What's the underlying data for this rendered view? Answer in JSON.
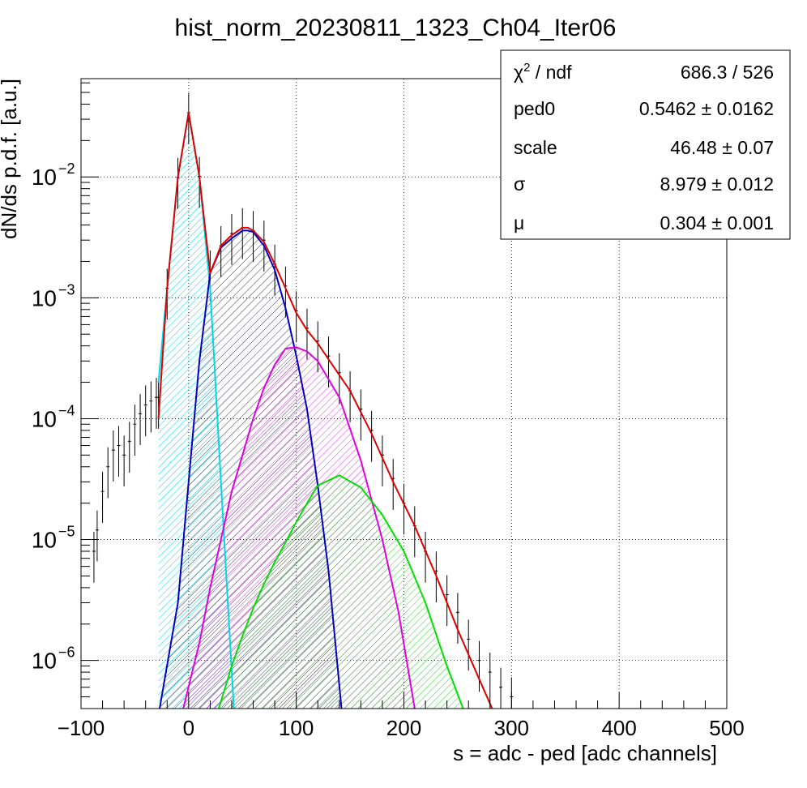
{
  "chart_data": {
    "type": "line",
    "title": "hist_norm_20230811_1323_Ch04_Iter06",
    "xlabel": "s = adc - ped [adc channels]",
    "ylabel": "dN/ds p.d.f. [a.u.]",
    "xlim": [
      -100,
      500
    ],
    "ylim": [
      4e-07,
      0.065
    ],
    "yscale": "log",
    "grid": true,
    "x_ticks": [
      {
        "value": -100,
        "label": "−100"
      },
      {
        "value": 0,
        "label": "0"
      },
      {
        "value": 100,
        "label": "100"
      },
      {
        "value": 200,
        "label": "200"
      },
      {
        "value": 300,
        "label": "300"
      },
      {
        "value": 400,
        "label": "400"
      },
      {
        "value": 500,
        "label": "500"
      }
    ],
    "y_ticks": [
      {
        "value": 0.01,
        "base": "10",
        "exp": "−2"
      },
      {
        "value": 0.001,
        "base": "10",
        "exp": "−3"
      },
      {
        "value": 0.0001,
        "base": "10",
        "exp": "−4"
      },
      {
        "value": 1e-05,
        "base": "10",
        "exp": "−5"
      },
      {
        "value": 1e-06,
        "base": "10",
        "exp": "−6"
      }
    ],
    "legend_position": "top-right",
    "stats": [
      {
        "label": "χ",
        "sup": "2",
        "label_rest": " / ndf",
        "value": "686.3 / 526"
      },
      {
        "label": "ped0",
        "sup": "",
        "label_rest": "",
        "value": "0.5462 ± 0.0162"
      },
      {
        "label": "scale",
        "sup": "",
        "label_rest": "",
        "value": "46.48 ± 0.07"
      },
      {
        "label": "σ",
        "sup": "",
        "label_rest": "",
        "value": "8.979 ± 0.012"
      },
      {
        "label": "μ",
        "sup": "",
        "label_rest": "",
        "value": "0.304 ± 0.001"
      }
    ],
    "components": [
      {
        "color": "#00d8e8",
        "hatch": "hatch-cyan",
        "x": [
          -28,
          -20,
          -10,
          0,
          10,
          20,
          30,
          42
        ],
        "y": [
          0.0002,
          0.0012,
          0.01,
          0.034,
          0.01,
          0.0012,
          3e-05,
          4e-07
        ]
      },
      {
        "color": "#0000c0",
        "hatch": "hatch-blue",
        "x": [
          -27,
          -10,
          0,
          10,
          20,
          30,
          40,
          50,
          55,
          60,
          70,
          80,
          90,
          100,
          110,
          120,
          130,
          142
        ],
        "y": [
          4e-07,
          3e-06,
          3e-05,
          0.0003,
          0.0016,
          0.0026,
          0.0031,
          0.0036,
          0.0036,
          0.0035,
          0.0027,
          0.0017,
          0.00082,
          0.00033,
          0.00012,
          2.8e-05,
          5.5e-06,
          4e-07
        ]
      },
      {
        "color": "#e000e0",
        "hatch": "hatch-magenta",
        "x": [
          -5,
          10,
          20,
          30,
          40,
          50,
          60,
          70,
          80,
          90,
          100,
          110,
          120,
          140,
          160,
          180,
          195,
          210
        ],
        "y": [
          4e-07,
          1.4e-06,
          4e-06,
          1e-05,
          2.5e-05,
          5e-05,
          0.0001,
          0.00018,
          0.00028,
          0.00038,
          0.00039,
          0.00036,
          0.0003,
          0.00015,
          4.5e-05,
          1e-05,
          2.5e-06,
          4e-07
        ]
      },
      {
        "color": "#00e000",
        "hatch": "hatch-green",
        "x": [
          28,
          40,
          50,
          60,
          70,
          80,
          90,
          100,
          110,
          120,
          140,
          160,
          180,
          200,
          220,
          240,
          255
        ],
        "y": [
          4e-07,
          9e-07,
          1.6e-06,
          2.7e-06,
          4.3e-06,
          6.5e-06,
          9.5e-06,
          1.4e-05,
          2e-05,
          2.8e-05,
          3.4e-05,
          2.7e-05,
          1.6e-05,
          8e-06,
          3e-06,
          9e-07,
          4e-07
        ]
      }
    ],
    "total_fit": {
      "color": "#e00000",
      "x": [
        -28,
        -20,
        -10,
        0,
        10,
        20,
        30,
        40,
        50,
        55,
        60,
        70,
        80,
        90,
        100,
        110,
        120,
        130,
        150,
        170,
        190,
        210,
        230,
        250,
        270,
        282
      ],
      "y": [
        0.0001,
        0.0012,
        0.01,
        0.034,
        0.01,
        0.0016,
        0.0027,
        0.0033,
        0.0038,
        0.0038,
        0.0036,
        0.0029,
        0.0019,
        0.0012,
        0.00075,
        0.00054,
        0.00042,
        0.00031,
        0.00017,
        7.5e-05,
        3e-05,
        1.3e-05,
        5e-06,
        1.8e-06,
        7e-07,
        4e-07
      ]
    },
    "data_points": {
      "color": "#000000",
      "x": [
        -88,
        -85,
        -80,
        -75,
        -70,
        -65,
        -60,
        -55,
        -50,
        -45,
        -40,
        -35,
        -30,
        -28,
        -20,
        -10,
        0,
        10,
        20,
        30,
        40,
        50,
        60,
        70,
        80,
        90,
        100,
        110,
        120,
        130,
        140,
        150,
        160,
        170,
        180,
        190,
        200,
        210,
        220,
        230,
        240,
        250,
        260,
        270,
        280,
        290,
        300
      ],
      "y": [
        8e-06,
        1.2e-05,
        2.5e-05,
        4e-05,
        5.5e-05,
        6e-05,
        5e-05,
        6.5e-05,
        9e-05,
        0.00011,
        0.00013,
        0.00014,
        0.00015,
        0.00015,
        0.0012,
        0.0099,
        0.034,
        0.0101,
        0.0017,
        0.0027,
        0.0034,
        0.0038,
        0.0036,
        0.003,
        0.0019,
        0.00125,
        0.00078,
        0.00056,
        0.00044,
        0.00033,
        0.00024,
        0.00017,
        0.00012,
        8e-05,
        5e-05,
        3.2e-05,
        2e-05,
        1.3e-05,
        8e-06,
        5.5e-06,
        3.5e-06,
        2.5e-06,
        1.5e-06,
        1e-06,
        8e-07,
        6e-07,
        5e-07
      ]
    }
  }
}
